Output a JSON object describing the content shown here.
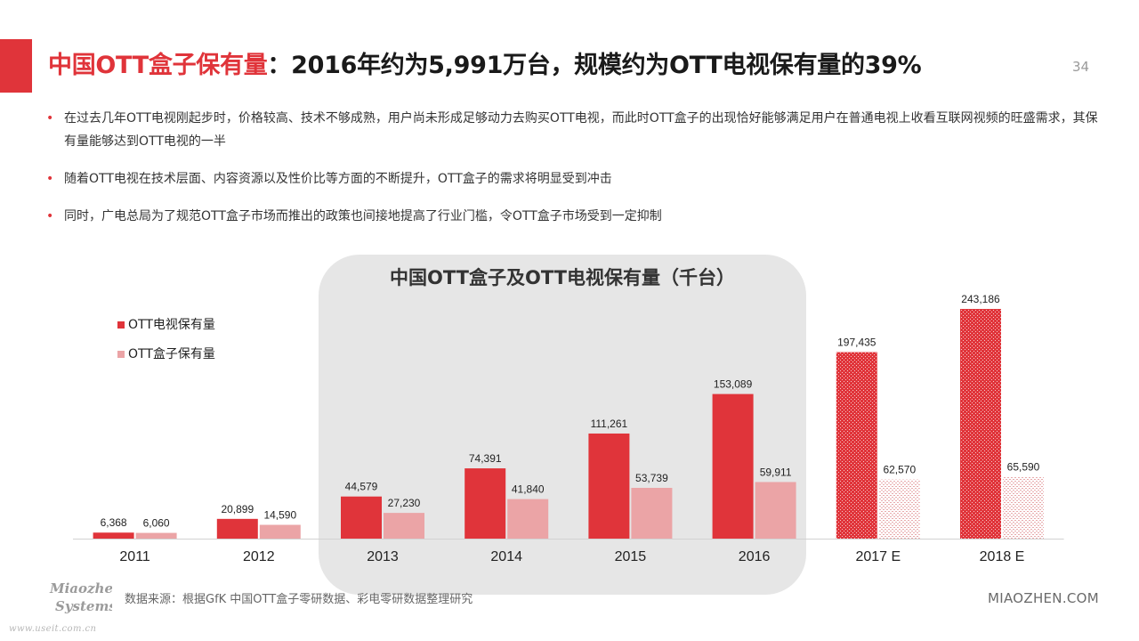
{
  "header": {
    "title_highlight": "中国OTT盒子保有量",
    "title_rest": "：2016年约为5,991万台，规模约为OTT电视保有量的39%",
    "page_number": "34"
  },
  "bullets": [
    "在过去几年OTT电视刚起步时，价格较高、技术不够成熟，用户尚未形成足够动力去购买OTT电视，而此时OTT盒子的出现恰好能够满足用户在普通电视上收看互联网视频的旺盛需求，其保有量能够达到OTT电视的一半",
    "随着OTT电视在技术层面、内容资源以及性价比等方面的不断提升，OTT盒子的需求将明显受到冲击",
    "同时，广电总局为了规范OTT盒子市场而推出的政策也间接地提高了行业门槛，令OTT盒子市场受到一定抑制"
  ],
  "chart_data": {
    "type": "bar",
    "title": "中国OTT盒子及OTT电视保有量（千台）",
    "categories": [
      "2011",
      "2012",
      "2013",
      "2014",
      "2015",
      "2016",
      "2017 E",
      "2018 E"
    ],
    "series": [
      {
        "name": "OTT电视保有量",
        "color": "#e0343a",
        "values": [
          6368,
          20899,
          44579,
          74391,
          111261,
          153089,
          197435,
          243186
        ],
        "labels": [
          "6,368",
          "20,899",
          "44,579",
          "74,391",
          "111,261",
          "153,089",
          "197,435",
          "243,186"
        ]
      },
      {
        "name": "OTT盒子保有量",
        "color": "#eba4a6",
        "values": [
          6060,
          14590,
          27230,
          41840,
          53739,
          59911,
          62570,
          65590
        ],
        "labels": [
          "6,060",
          "14,590",
          "27,230",
          "41,840",
          "53,739",
          "59,911",
          "62,570",
          "65,590"
        ]
      }
    ],
    "estimated_categories": [
      "2017 E",
      "2018 E"
    ],
    "highlighted_range": [
      "2013",
      "2016"
    ],
    "legend_position": "top-left",
    "grid": false,
    "ylim": [
      0,
      243186
    ]
  },
  "footer": {
    "source": "数据来源：根据GfK 中国OTT盒子零研数据、彩电零研数据整理研究",
    "logo_line1": "Miaozhen",
    "logo_line2": "Systems",
    "site": "MIAOZHEN.COM",
    "watermark": "www.useit.com.cn"
  }
}
